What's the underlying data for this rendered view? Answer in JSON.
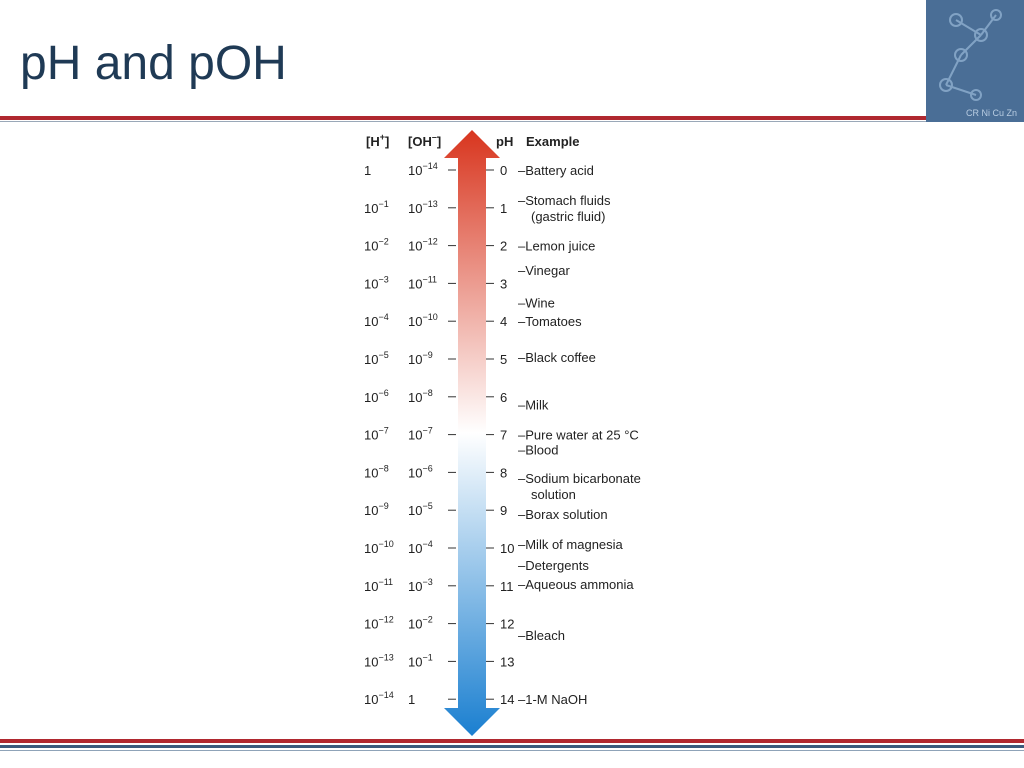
{
  "slide": {
    "title": "pH and pOH"
  },
  "logo": {
    "text": "CR Ni Cu Zn"
  },
  "figure": {
    "headers": {
      "h": "[H",
      "h_sup": "+",
      "h_close": "]",
      "oh": "[OH",
      "oh_sup": "–",
      "oh_close": "]",
      "ph": "pH",
      "example": "Example"
    },
    "rows": [
      {
        "h_base": "1",
        "h_exp": "",
        "oh_base": "10",
        "oh_exp": "−14",
        "ph": "0"
      },
      {
        "h_base": "10",
        "h_exp": "−1",
        "oh_base": "10",
        "oh_exp": "−13",
        "ph": "1"
      },
      {
        "h_base": "10",
        "h_exp": "−2",
        "oh_base": "10",
        "oh_exp": "−12",
        "ph": "2"
      },
      {
        "h_base": "10",
        "h_exp": "−3",
        "oh_base": "10",
        "oh_exp": "−11",
        "ph": "3"
      },
      {
        "h_base": "10",
        "h_exp": "−4",
        "oh_base": "10",
        "oh_exp": "−10",
        "ph": "4"
      },
      {
        "h_base": "10",
        "h_exp": "−5",
        "oh_base": "10",
        "oh_exp": "−9",
        "ph": "5"
      },
      {
        "h_base": "10",
        "h_exp": "−6",
        "oh_base": "10",
        "oh_exp": "−8",
        "ph": "6"
      },
      {
        "h_base": "10",
        "h_exp": "−7",
        "oh_base": "10",
        "oh_exp": "−7",
        "ph": "7"
      },
      {
        "h_base": "10",
        "h_exp": "−8",
        "oh_base": "10",
        "oh_exp": "−6",
        "ph": "8"
      },
      {
        "h_base": "10",
        "h_exp": "−9",
        "oh_base": "10",
        "oh_exp": "−5",
        "ph": "9"
      },
      {
        "h_base": "10",
        "h_exp": "−10",
        "oh_base": "10",
        "oh_exp": "−4",
        "ph": "10"
      },
      {
        "h_base": "10",
        "h_exp": "−11",
        "oh_base": "10",
        "oh_exp": "−3",
        "ph": "11"
      },
      {
        "h_base": "10",
        "h_exp": "−12",
        "oh_base": "10",
        "oh_exp": "−2",
        "ph": "12"
      },
      {
        "h_base": "10",
        "h_exp": "−13",
        "oh_base": "10",
        "oh_exp": "−1",
        "ph": "13"
      },
      {
        "h_base": "10",
        "h_exp": "−14",
        "oh_base": "1",
        "oh_exp": "",
        "ph": "14"
      }
    ],
    "examples": [
      {
        "ph": 0.0,
        "lines": [
          "–Battery acid"
        ]
      },
      {
        "ph": 0.8,
        "lines": [
          "–Stomach fluids",
          "(gastric fluid)"
        ]
      },
      {
        "ph": 2.0,
        "lines": [
          "–Lemon juice"
        ]
      },
      {
        "ph": 2.65,
        "lines": [
          "–Vinegar"
        ]
      },
      {
        "ph": 3.5,
        "lines": [
          "–Wine"
        ]
      },
      {
        "ph": 4.0,
        "lines": [
          "–Tomatoes"
        ]
      },
      {
        "ph": 4.95,
        "lines": [
          "–Black coffee"
        ]
      },
      {
        "ph": 6.2,
        "lines": [
          "–Milk"
        ]
      },
      {
        "ph": 7.0,
        "lines": [
          "–Pure water at 25 °C"
        ]
      },
      {
        "ph": 7.4,
        "lines": [
          "–Blood"
        ]
      },
      {
        "ph": 8.15,
        "lines": [
          "–Sodium bicarbonate",
          "solution"
        ]
      },
      {
        "ph": 9.1,
        "lines": [
          "–Borax solution"
        ]
      },
      {
        "ph": 9.9,
        "lines": [
          "–Milk of magnesia"
        ]
      },
      {
        "ph": 10.45,
        "lines": [
          "–Detergents"
        ]
      },
      {
        "ph": 10.95,
        "lines": [
          "–Aqueous ammonia"
        ]
      },
      {
        "ph": 12.3,
        "lines": [
          "–Bleach"
        ]
      },
      {
        "ph": 14.0,
        "lines": [
          "–1-M NaOH"
        ]
      }
    ],
    "colors": {
      "acid": "#d8351e",
      "neutral": "#ffffff",
      "base": "#1a7fd0"
    }
  }
}
